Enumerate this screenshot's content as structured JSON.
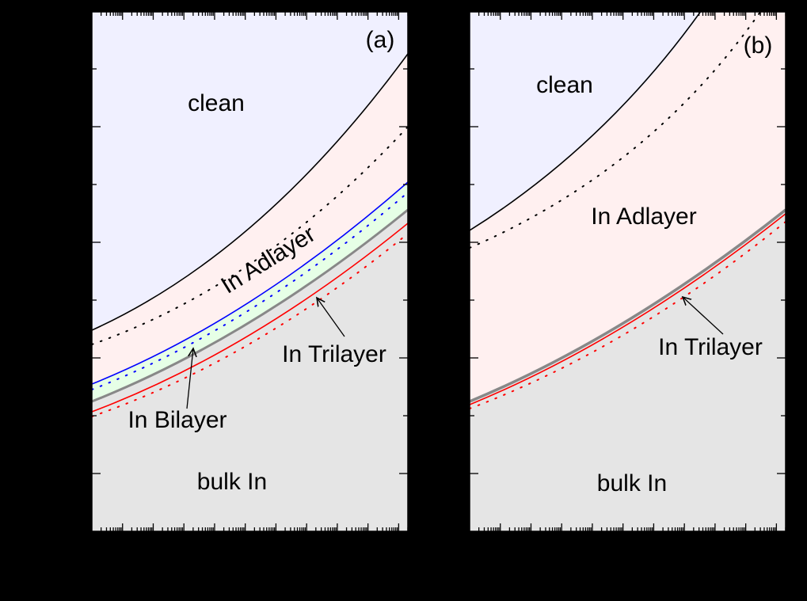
{
  "chart_data": [
    {
      "panel": "a",
      "type": "area",
      "title": "",
      "panel_label": "(a)",
      "xlabel": "",
      "ylabel": "",
      "xscale": "log",
      "x_major_ticks": 10,
      "y_major_ticks": 4,
      "grid": false,
      "colors": {
        "clean": "#f0f0ff",
        "adlayer": "#fff0f0",
        "bilayer": "#e6ffe6",
        "bulk": "#e5e5e5",
        "clean_boundary": "#000000",
        "bilayer_boundary": "#0000ff",
        "trilayer_boundary": "#888888",
        "bulk_boundary": "#ff0000"
      },
      "regions": [
        {
          "name": "clean",
          "label": "clean"
        },
        {
          "name": "adlayer",
          "label": "In Adlayer"
        },
        {
          "name": "bilayer",
          "label": "In Bilayer"
        },
        {
          "name": "trilayer",
          "label": "In Trilayer"
        },
        {
          "name": "bulk",
          "label": "bulk In"
        }
      ],
      "x": [
        0,
        0.5,
        1
      ],
      "series": [
        {
          "name": "clean/adlayer boundary",
          "style": "solid",
          "color": "#000000",
          "values": [
            0.7,
            0.49,
            0.08
          ]
        },
        {
          "name": "clean/adlayer boundary (dotted)",
          "style": "dotted",
          "color": "#000000",
          "values": [
            0.73,
            0.62,
            0.22
          ]
        },
        {
          "name": "adlayer/bilayer boundary",
          "style": "solid",
          "color": "#0000ff",
          "values": [
            0.8,
            0.67,
            0.33
          ]
        },
        {
          "name": "adlayer/bilayer boundary (dotted)",
          "style": "dotted",
          "color": "#0000ff",
          "values": [
            0.81,
            0.69,
            0.35
          ]
        },
        {
          "name": "bilayer/trilayer boundary",
          "style": "solid",
          "color": "#888888",
          "values": [
            0.84,
            0.7,
            0.38
          ]
        },
        {
          "name": "trilayer/bulk boundary",
          "style": "solid",
          "color": "#ff0000",
          "values": [
            0.86,
            0.73,
            0.41
          ]
        },
        {
          "name": "trilayer/bulk boundary (dotted)",
          "style": "dotted",
          "color": "#ff0000",
          "values": [
            0.87,
            0.75,
            0.43
          ]
        }
      ]
    },
    {
      "panel": "b",
      "type": "area",
      "title": "",
      "panel_label": "(b)",
      "xlabel": "",
      "ylabel": "",
      "xscale": "log",
      "x_major_ticks": 10,
      "y_major_ticks": 4,
      "grid": false,
      "colors": {
        "clean": "#f0f0ff",
        "adlayer": "#fff0f0",
        "bulk": "#e5e5e5",
        "clean_boundary": "#000000",
        "trilayer_boundary": "#888888",
        "bulk_boundary": "#ff0000"
      },
      "regions": [
        {
          "name": "clean",
          "label": "clean"
        },
        {
          "name": "adlayer",
          "label": "In Adlayer"
        },
        {
          "name": "trilayer",
          "label": "In Trilayer"
        },
        {
          "name": "bulk",
          "label": "bulk In"
        }
      ],
      "x": [
        0,
        0.5,
        1
      ],
      "series": [
        {
          "name": "clean/adlayer boundary",
          "style": "solid",
          "color": "#000000",
          "values": [
            0.42,
            0.23,
            -0.05
          ]
        },
        {
          "name": "clean/adlayer boundary (dotted)",
          "style": "dotted",
          "color": "#000000",
          "values": [
            0.45,
            0.34,
            0.1
          ]
        },
        {
          "name": "adlayer/trilayer boundary",
          "style": "solid",
          "color": "#888888",
          "values": [
            0.84,
            0.71,
            0.38
          ]
        },
        {
          "name": "trilayer/bulk boundary",
          "style": "solid",
          "color": "#ff0000",
          "values": [
            0.85,
            0.72,
            0.39
          ]
        },
        {
          "name": "trilayer/bulk boundary (dotted)",
          "style": "dotted",
          "color": "#ff0000",
          "values": [
            0.86,
            0.74,
            0.41
          ]
        }
      ]
    }
  ],
  "panels": {
    "a": {
      "tag": "(a)",
      "labels": {
        "clean": "clean",
        "adlayer": "In Adlayer",
        "bilayer": "In Bilayer",
        "trilayer": "In Trilayer",
        "bulk": "bulk In"
      }
    },
    "b": {
      "tag": "(b)",
      "labels": {
        "clean": "clean",
        "adlayer": "In Adlayer",
        "trilayer": "In Trilayer",
        "bulk": "bulk In"
      }
    }
  }
}
